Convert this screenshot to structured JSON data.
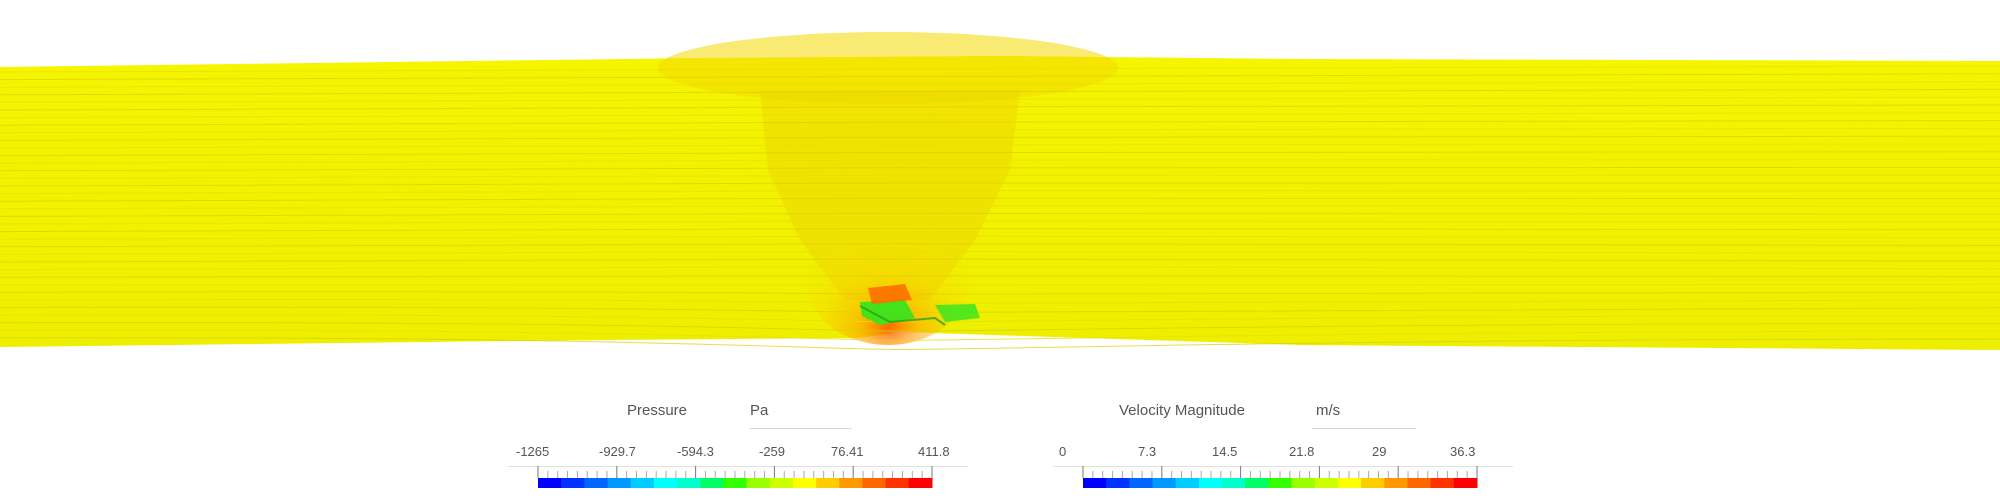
{
  "legends": [
    {
      "title": "Pressure",
      "unit": "Pa",
      "tick_labels": [
        "-1265",
        "-929.7",
        "-594.3",
        "-259",
        "76.41",
        "411.8"
      ],
      "range": [
        -1265,
        411.8
      ]
    },
    {
      "title": "Velocity Magnitude",
      "unit": "m/s",
      "tick_labels": [
        "0",
        "7.3",
        "14.5",
        "21.8",
        "29",
        "36.3"
      ],
      "range": [
        0,
        36.3
      ]
    }
  ],
  "colormap": [
    "#0000ff",
    "#0033ff",
    "#0066ff",
    "#0099ff",
    "#00ccff",
    "#00ffff",
    "#00ffcc",
    "#00ff66",
    "#33ff00",
    "#99ff00",
    "#ccff00",
    "#ffff00",
    "#ffcc00",
    "#ff9900",
    "#ff6600",
    "#ff3300",
    "#ff0000"
  ],
  "colors": {
    "field": "#f2f200",
    "streak": "#d9d400",
    "high_pressure": "#ff6a00",
    "low_pressure": "#33e01a"
  }
}
